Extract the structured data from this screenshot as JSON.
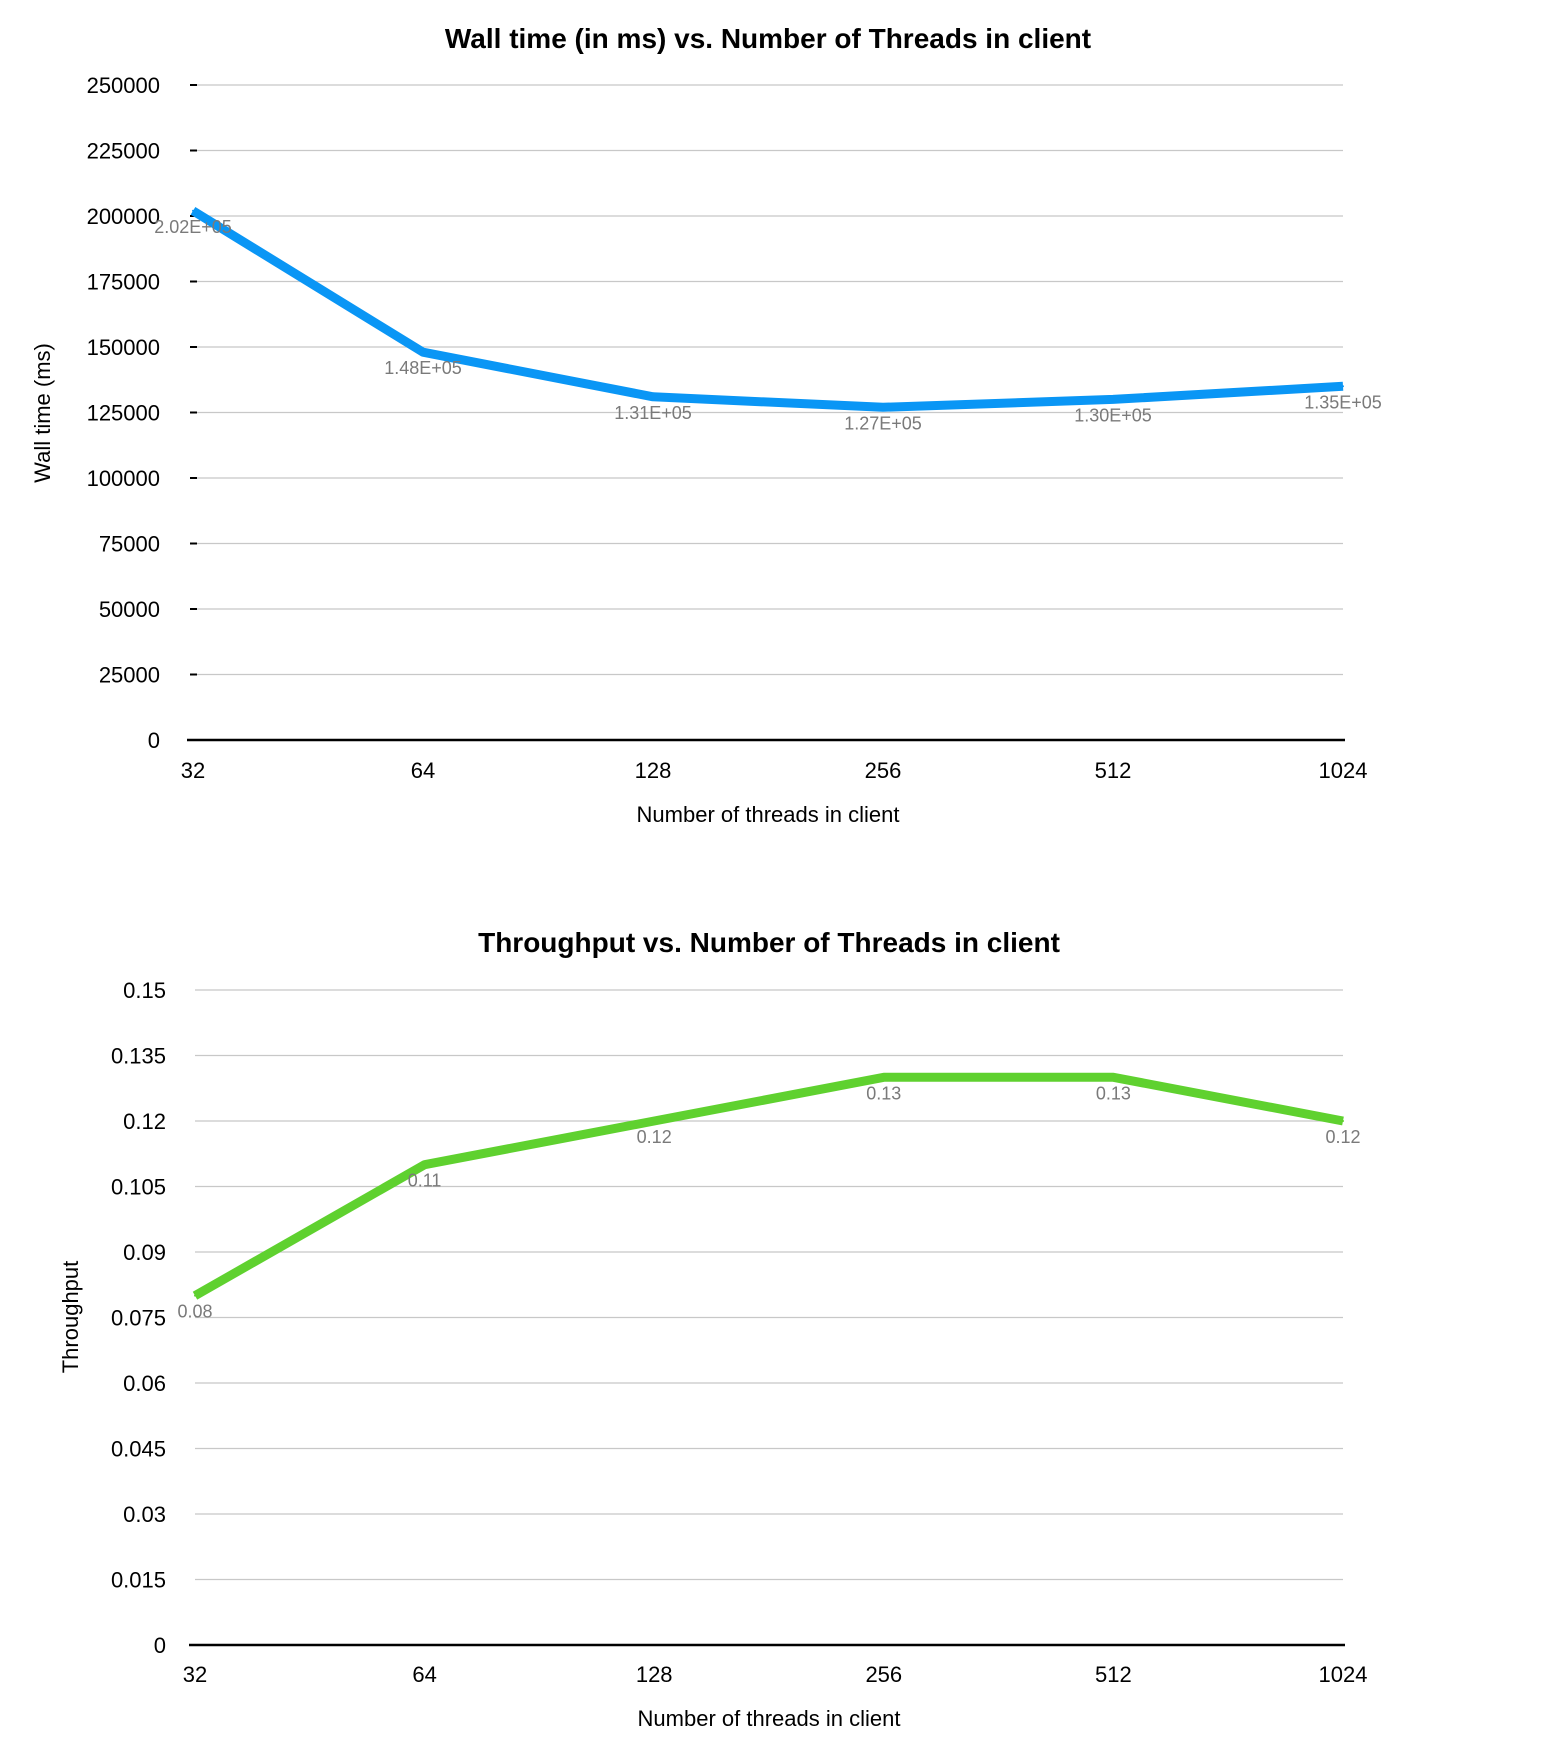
{
  "chart_data": [
    {
      "type": "line",
      "title": "Wall time (in ms) vs. Number of Threads in client",
      "xlabel": "Number of threads in client",
      "ylabel": "Wall time (ms)",
      "categories": [
        "32",
        "64",
        "128",
        "256",
        "512",
        "1024"
      ],
      "ylim": [
        0,
        250000
      ],
      "yticks": [
        "0",
        "25000",
        "50000",
        "75000",
        "100000",
        "125000",
        "150000",
        "175000",
        "200000",
        "225000",
        "250000"
      ],
      "series": [
        {
          "values": [
            202000,
            148000,
            131000,
            127000,
            130000,
            135000
          ],
          "labels": [
            "2.02E+05",
            "1.48E+05",
            "1.31E+05",
            "1.27E+05",
            "1.30E+05",
            "1.35E+05"
          ],
          "color": "#0a96f5"
        }
      ],
      "grid": true
    },
    {
      "type": "line",
      "title": "Throughput vs. Number of Threads in client",
      "xlabel": "Number of threads in client",
      "ylabel": "Throughput",
      "categories": [
        "32",
        "64",
        "128",
        "256",
        "512",
        "1024"
      ],
      "ylim": [
        0,
        0.15
      ],
      "yticks": [
        "0",
        "0.015",
        "0.03",
        "0.045",
        "0.06",
        "0.075",
        "0.09",
        "0.105",
        "0.12",
        "0.135",
        "0.15"
      ],
      "series": [
        {
          "values": [
            0.08,
            0.11,
            0.12,
            0.13,
            0.13,
            0.12
          ],
          "labels": [
            "0.08",
            "0.11",
            "0.12",
            "0.13",
            "0.13",
            "0.12"
          ],
          "color": "#5fd12f"
        }
      ],
      "grid": true
    }
  ]
}
